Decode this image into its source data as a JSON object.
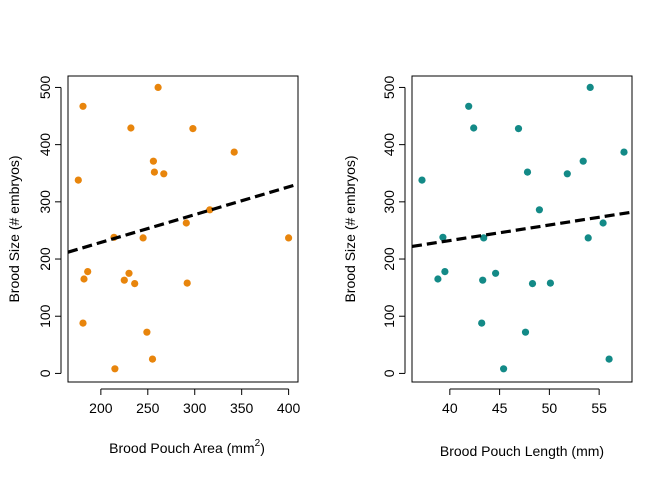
{
  "chart_data": [
    {
      "type": "scatter",
      "xlabel": "Brood Pouch Area (mm",
      "xlabel_superscript": "2",
      "xlabel_suffix": ")",
      "ylabel": "Brood Size (# embryos)",
      "xlim": [
        165,
        410
      ],
      "ylim": [
        -15,
        520
      ],
      "xticks": [
        200,
        250,
        300,
        350,
        400
      ],
      "yticks": [
        0,
        100,
        200,
        300,
        400,
        500
      ],
      "point_color": "#E8850C",
      "trendline": {
        "style": "dashed",
        "color": "#000000",
        "x": [
          165,
          410
        ],
        "y": [
          212,
          331
        ]
      },
      "points": [
        {
          "x": 176,
          "y": 338
        },
        {
          "x": 181,
          "y": 467
        },
        {
          "x": 182,
          "y": 165
        },
        {
          "x": 186,
          "y": 178
        },
        {
          "x": 181,
          "y": 88
        },
        {
          "x": 214,
          "y": 238
        },
        {
          "x": 215,
          "y": 8
        },
        {
          "x": 225,
          "y": 163
        },
        {
          "x": 230,
          "y": 175
        },
        {
          "x": 232,
          "y": 429
        },
        {
          "x": 236,
          "y": 157
        },
        {
          "x": 245,
          "y": 237
        },
        {
          "x": 249,
          "y": 72
        },
        {
          "x": 255,
          "y": 25
        },
        {
          "x": 256,
          "y": 371
        },
        {
          "x": 257,
          "y": 352
        },
        {
          "x": 261,
          "y": 500
        },
        {
          "x": 267,
          "y": 349
        },
        {
          "x": 291,
          "y": 263
        },
        {
          "x": 292,
          "y": 158
        },
        {
          "x": 298,
          "y": 428
        },
        {
          "x": 316,
          "y": 286
        },
        {
          "x": 342,
          "y": 387
        },
        {
          "x": 400,
          "y": 237
        }
      ]
    },
    {
      "type": "scatter",
      "xlabel": "Brood Pouch Length (mm)",
      "ylabel": "Brood Size (# embryos)",
      "xlim": [
        36.2,
        58.3
      ],
      "ylim": [
        -15,
        520
      ],
      "xticks": [
        40,
        45,
        50,
        55
      ],
      "yticks": [
        0,
        100,
        200,
        300,
        400,
        500
      ],
      "point_color": "#138A87",
      "trendline": {
        "style": "dashed",
        "color": "#000000",
        "x": [
          36.2,
          58.3
        ],
        "y": [
          222,
          282
        ]
      },
      "points": [
        {
          "x": 37.2,
          "y": 338
        },
        {
          "x": 38.8,
          "y": 165
        },
        {
          "x": 39.3,
          "y": 238
        },
        {
          "x": 39.5,
          "y": 178
        },
        {
          "x": 41.9,
          "y": 467
        },
        {
          "x": 42.4,
          "y": 429
        },
        {
          "x": 43.2,
          "y": 88
        },
        {
          "x": 43.3,
          "y": 163
        },
        {
          "x": 43.4,
          "y": 237
        },
        {
          "x": 44.6,
          "y": 175
        },
        {
          "x": 45.4,
          "y": 8
        },
        {
          "x": 46.9,
          "y": 428
        },
        {
          "x": 47.6,
          "y": 72
        },
        {
          "x": 47.8,
          "y": 352
        },
        {
          "x": 48.3,
          "y": 157
        },
        {
          "x": 49.0,
          "y": 286
        },
        {
          "x": 50.1,
          "y": 158
        },
        {
          "x": 51.8,
          "y": 349
        },
        {
          "x": 53.4,
          "y": 371
        },
        {
          "x": 53.9,
          "y": 237
        },
        {
          "x": 54.1,
          "y": 500
        },
        {
          "x": 55.4,
          "y": 263
        },
        {
          "x": 56.0,
          "y": 25
        },
        {
          "x": 57.5,
          "y": 387
        }
      ]
    }
  ]
}
